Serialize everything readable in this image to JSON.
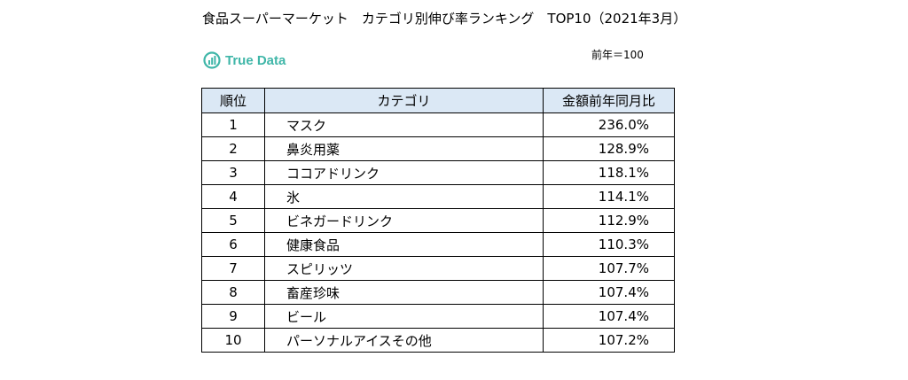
{
  "title": "食品スーパーマーケット　カテゴリ別伸び率ランキング　TOP10（2021年3月）",
  "logo": {
    "text": "True Data",
    "icon": "bar-chart-circle-icon",
    "color": "#3fb6a8"
  },
  "base_note": "前年＝100",
  "table": {
    "headers": {
      "rank": "順位",
      "category": "カテゴリ",
      "value": "金額前年同月比"
    },
    "header_bg": "#dbe8f5",
    "rows": [
      {
        "rank": "1",
        "category": "マスク",
        "value": "236.0%"
      },
      {
        "rank": "2",
        "category": "鼻炎用薬",
        "value": "128.9%"
      },
      {
        "rank": "3",
        "category": "ココアドリンク",
        "value": "118.1%"
      },
      {
        "rank": "4",
        "category": "氷",
        "value": "114.1%"
      },
      {
        "rank": "5",
        "category": "ビネガードリンク",
        "value": "112.9%"
      },
      {
        "rank": "6",
        "category": "健康食品",
        "value": "110.3%"
      },
      {
        "rank": "7",
        "category": "スピリッツ",
        "value": "107.7%"
      },
      {
        "rank": "8",
        "category": "畜産珍味",
        "value": "107.4%"
      },
      {
        "rank": "9",
        "category": "ビール",
        "value": "107.4%"
      },
      {
        "rank": "10",
        "category": "パーソナルアイスその他",
        "value": "107.2%"
      }
    ]
  }
}
